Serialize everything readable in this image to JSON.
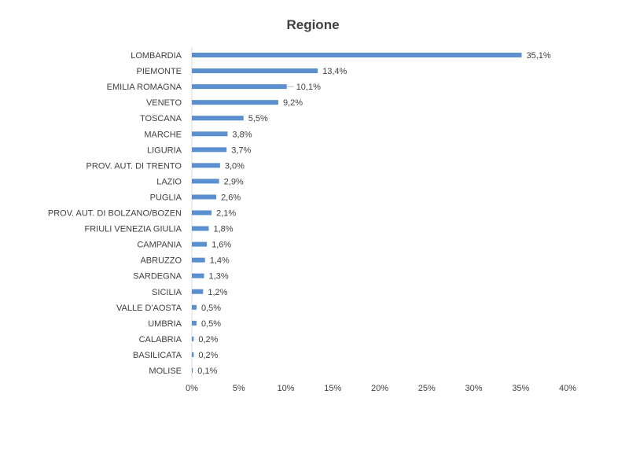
{
  "chart_data": {
    "type": "bar",
    "orientation": "horizontal",
    "title": "Regione",
    "xlabel": "",
    "ylabel": "",
    "categories": [
      "LOMBARDIA",
      "PIEMONTE",
      "EMILIA ROMAGNA",
      "VENETO",
      "TOSCANA",
      "MARCHE",
      "LIGURIA",
      "PROV. AUT. DI TRENTO",
      "LAZIO",
      "PUGLIA",
      "PROV. AUT. DI BOLZANO/BOZEN",
      "FRIULI VENEZIA GIULIA",
      "CAMPANIA",
      "ABRUZZO",
      "SARDEGNA",
      "SICILIA",
      "VALLE D'AOSTA",
      "UMBRIA",
      "CALABRIA",
      "BASILICATA",
      "MOLISE"
    ],
    "values": [
      35.1,
      13.4,
      10.1,
      9.2,
      5.5,
      3.8,
      3.7,
      3.0,
      2.9,
      2.6,
      2.1,
      1.8,
      1.6,
      1.4,
      1.3,
      1.2,
      0.5,
      0.5,
      0.2,
      0.2,
      0.1
    ],
    "value_labels": [
      "35,1%",
      "13,4%",
      "10,1%",
      "9,2%",
      "5,5%",
      "3,8%",
      "3,7%",
      "3,0%",
      "2,9%",
      "2,6%",
      "2,1%",
      "1,8%",
      "1,6%",
      "1,4%",
      "1,3%",
      "1,2%",
      "0,5%",
      "0,5%",
      "0,2%",
      "0,2%",
      "0,1%"
    ],
    "xlim": [
      0,
      40
    ],
    "xticks": [
      0,
      5,
      10,
      15,
      20,
      25,
      30,
      35,
      40
    ],
    "xtick_labels": [
      "0%",
      "5%",
      "10%",
      "15%",
      "20%",
      "25%",
      "30%",
      "35%",
      "40%"
    ],
    "grid": false,
    "legend": "none",
    "bar_color": "#5b8fd0"
  }
}
